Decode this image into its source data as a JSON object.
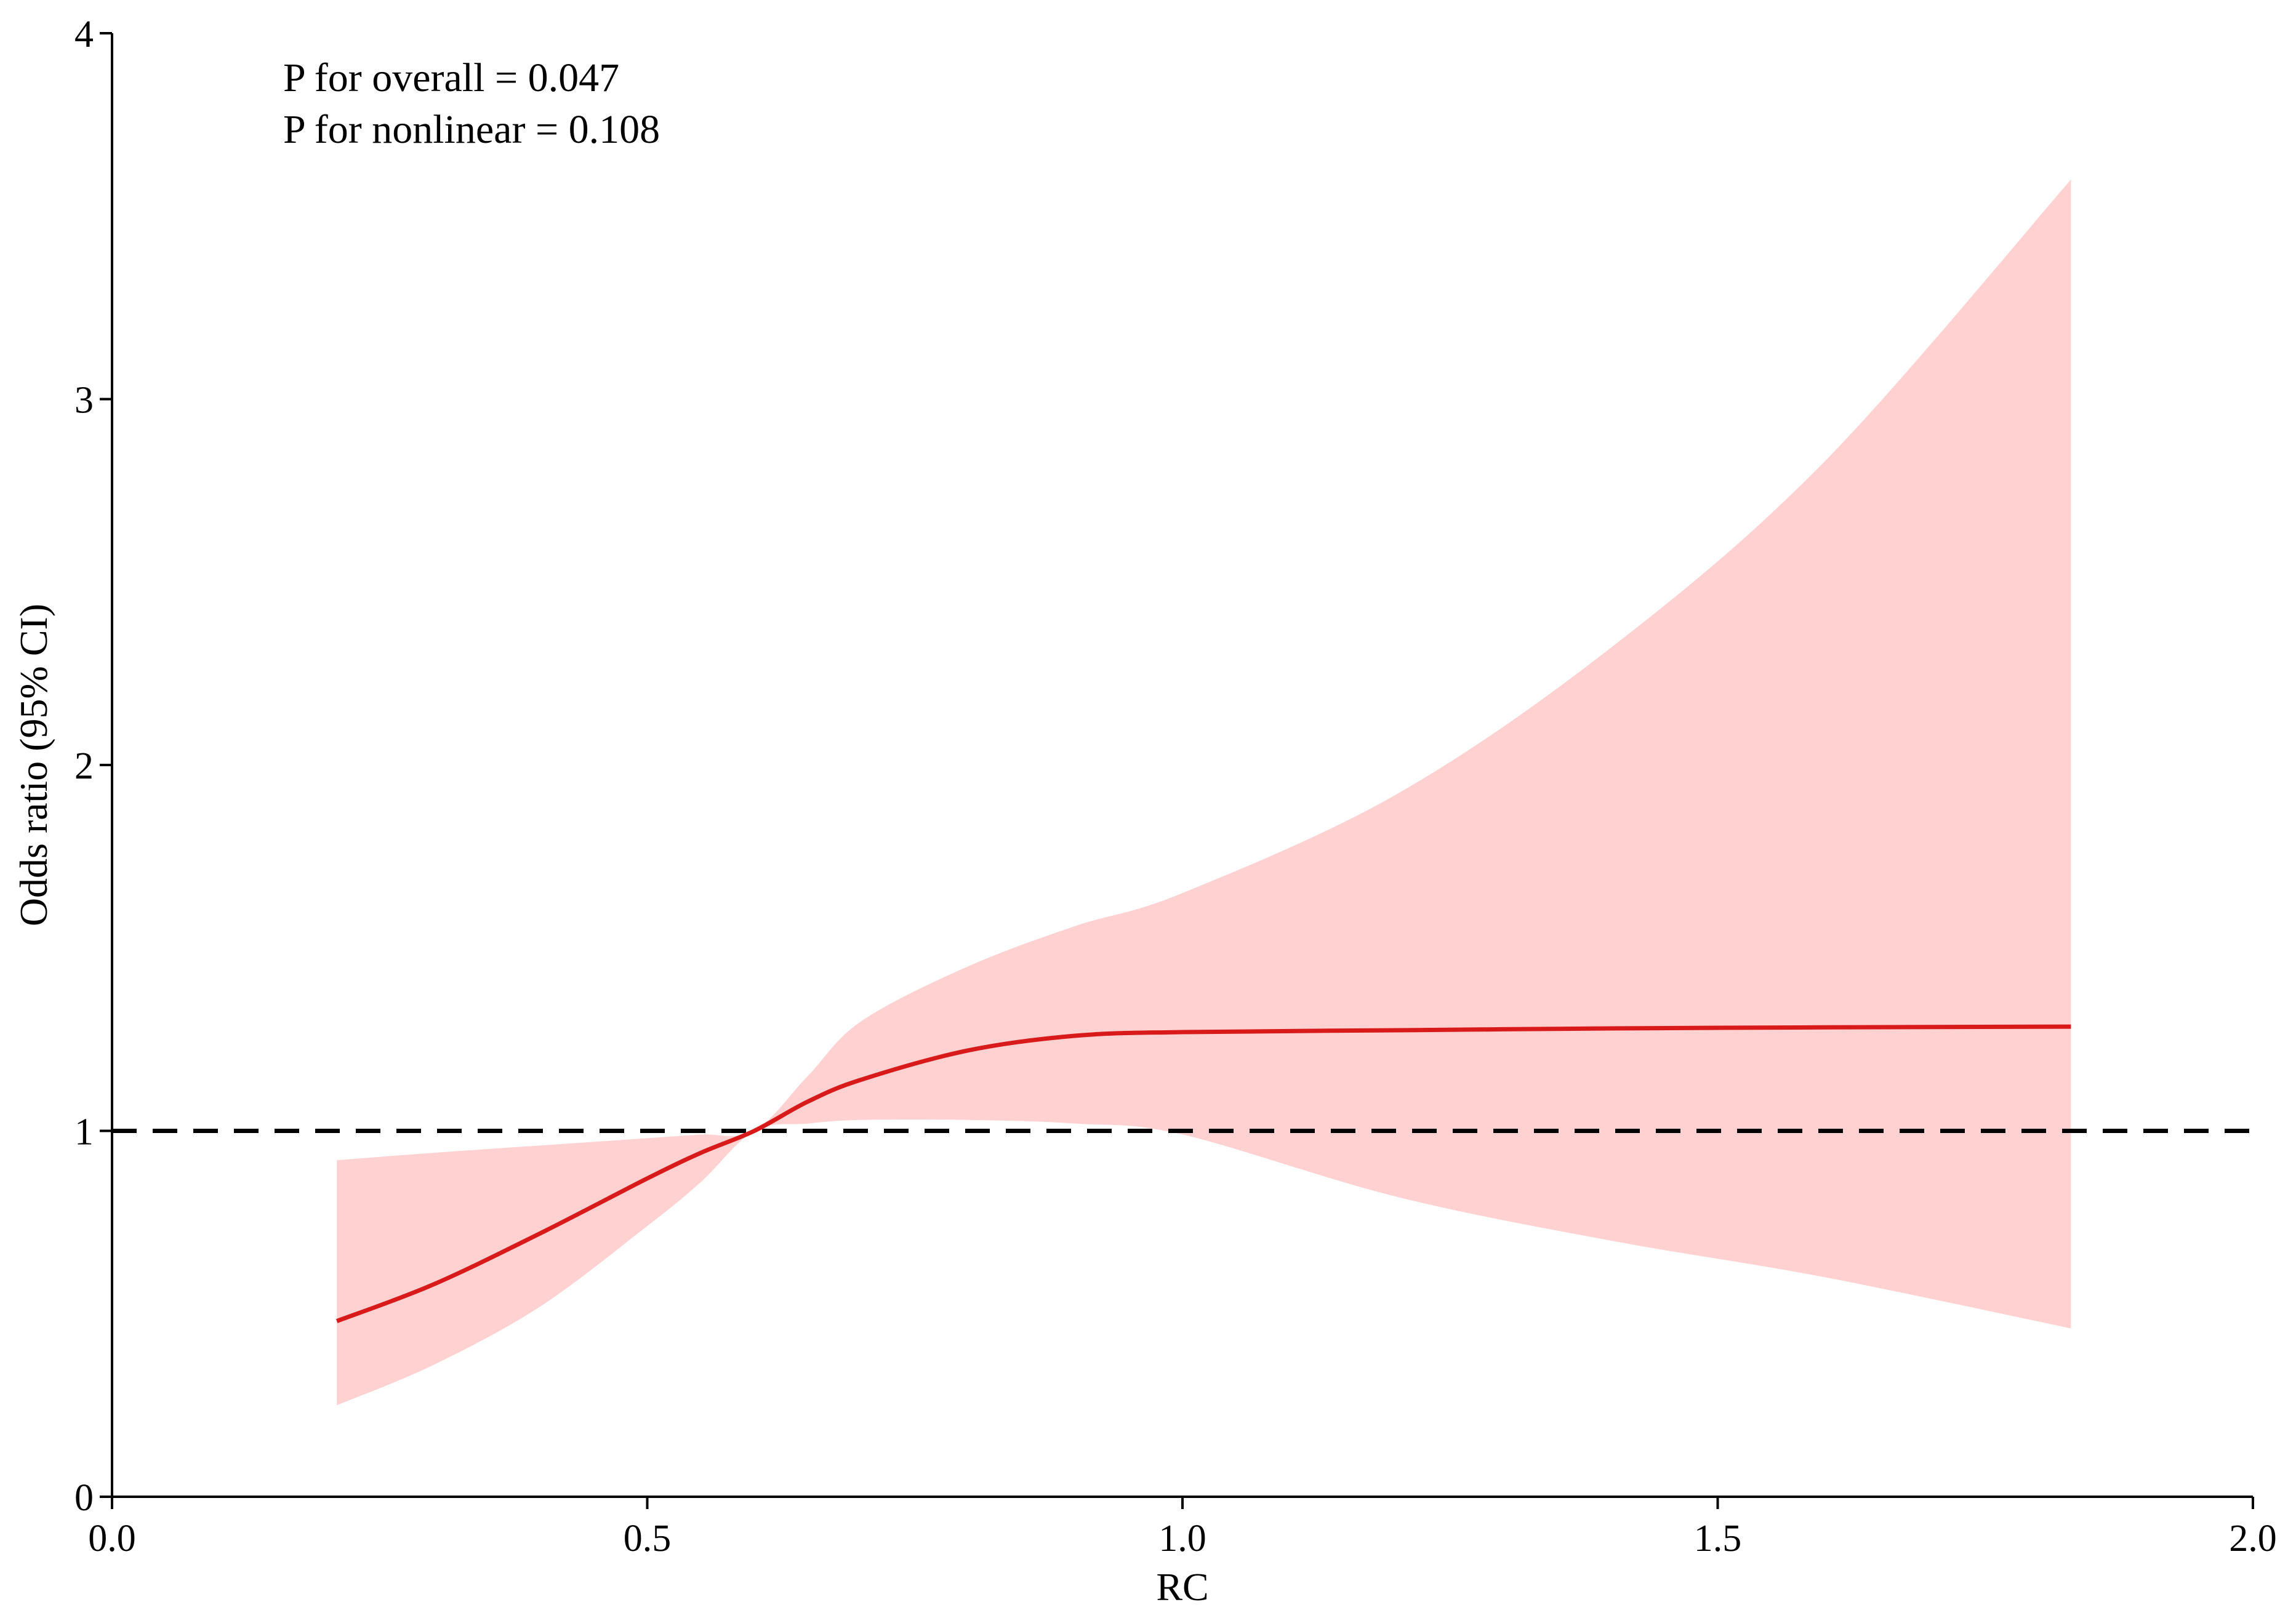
{
  "chart_data": {
    "type": "line",
    "xlabel": "RC",
    "ylabel": "Odds ratio (95% CI)",
    "xlim": [
      0.0,
      2.0
    ],
    "ylim": [
      0,
      4
    ],
    "x_ticks": [
      "0.0",
      "0.5",
      "1.0",
      "1.5",
      "2.0"
    ],
    "y_ticks": [
      "0",
      "1",
      "2",
      "3",
      "4"
    ],
    "grid": false,
    "annotations": [
      "P for overall = 0.047",
      "P for nonlinear = 0.108"
    ],
    "reference_line": {
      "y": 1,
      "style": "dashed",
      "color": "#000000"
    },
    "colors": {
      "line": "#d91a1a",
      "band": "#ffd1d1"
    },
    "series": [
      {
        "x": [
          0.21,
          0.3,
          0.4,
          0.5,
          0.55,
          0.6,
          0.65,
          0.7,
          0.8,
          0.9,
          1.0,
          1.2,
          1.4,
          1.6,
          1.83
        ],
        "y": [
          0.48,
          0.58,
          0.72,
          0.87,
          0.94,
          1.0,
          1.08,
          1.14,
          1.22,
          1.26,
          1.27,
          1.275,
          1.28,
          1.283,
          1.285
        ],
        "lower": [
          0.25,
          0.36,
          0.52,
          0.74,
          0.86,
          1.0,
          1.02,
          1.03,
          1.03,
          1.02,
          0.99,
          0.82,
          0.7,
          0.6,
          0.46
        ],
        "upper": [
          0.92,
          0.94,
          0.96,
          0.98,
          0.99,
          1.0,
          1.15,
          1.3,
          1.45,
          1.56,
          1.65,
          1.92,
          2.32,
          2.83,
          3.6
        ]
      }
    ]
  }
}
